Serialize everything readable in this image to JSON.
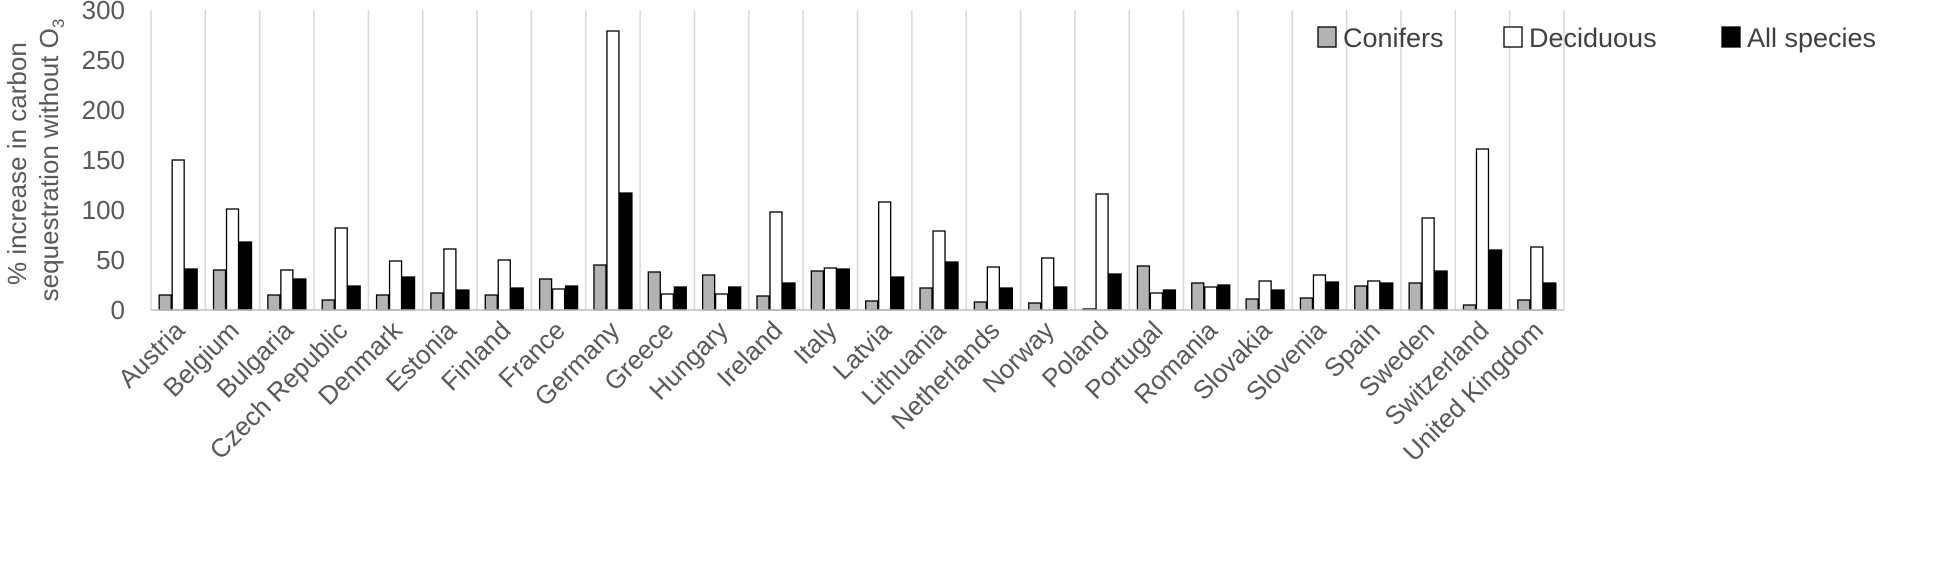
{
  "chart_data": {
    "type": "bar",
    "title": "",
    "ylabel_line1": "% increase in carbon",
    "ylabel_line2": "sequestration without O",
    "ylabel_subscript": "3",
    "ylim": [
      0,
      300
    ],
    "yticks": [
      "0",
      "50",
      "100",
      "150",
      "200",
      "250",
      "300"
    ],
    "grid": "vertical separators between categories",
    "legend_position": "top-right",
    "categories": [
      "Austria",
      "Belgium",
      "Bulgaria",
      "Czech Republic",
      "Denmark",
      "Estonia",
      "Finland",
      "France",
      "Germany",
      "Greece",
      "Hungary",
      "Ireland",
      "Italy",
      "Latvia",
      "Lithuania",
      "Netherlands",
      "Norway",
      "Poland",
      "Portugal",
      "Romania",
      "Slovakia",
      "Slovenia",
      "Spain",
      "Sweden",
      "Switzerland",
      "United Kingdom"
    ],
    "series": [
      {
        "name": "Conifers",
        "color": "#b3b3b3",
        "values": [
          15,
          40,
          15,
          10,
          15,
          17,
          15,
          31,
          45,
          38,
          35,
          14,
          39,
          9,
          22,
          8,
          7,
          1,
          44,
          27,
          11,
          12,
          24,
          27,
          5,
          10
        ]
      },
      {
        "name": "Deciduous",
        "color": "#ffffff",
        "values": [
          150,
          101,
          40,
          82,
          49,
          61,
          50,
          21,
          279,
          16,
          16,
          98,
          42,
          108,
          79,
          43,
          52,
          116,
          17,
          23,
          29,
          35,
          29,
          92,
          161,
          63
        ]
      },
      {
        "name": "All species",
        "color": "#000000",
        "values": [
          41,
          68,
          31,
          24,
          33,
          20,
          22,
          24,
          117,
          23,
          23,
          27,
          41,
          33,
          48,
          22,
          23,
          36,
          20,
          25,
          20,
          28,
          27,
          39,
          60,
          27
        ]
      }
    ]
  }
}
